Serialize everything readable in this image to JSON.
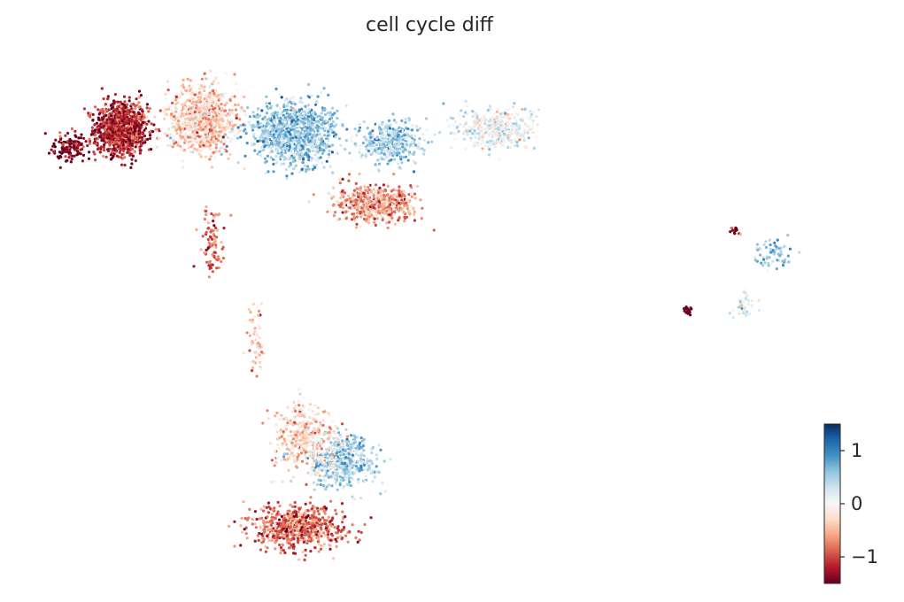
{
  "title": "cell cycle diff",
  "chart_data": {
    "type": "scatter",
    "title": "cell cycle diff",
    "xlabel": "",
    "ylabel": "",
    "grid": false,
    "axes_visible": false,
    "colormap": "RdBu",
    "colormap_stops": [
      "#67001f",
      "#b2182b",
      "#d6604d",
      "#f4a582",
      "#fddbc7",
      "#f7f7f7",
      "#d1e5f0",
      "#92c5de",
      "#4393c3",
      "#2166ac",
      "#053061"
    ],
    "colorbar": {
      "location": "right-bottom",
      "range": [
        -1.5,
        1.5
      ],
      "ticks": [
        {
          "value": 1,
          "label": "1"
        },
        {
          "value": 0,
          "label": "0"
        },
        {
          "value": -1,
          "label": "−1"
        }
      ]
    },
    "clusters": [
      {
        "name": "",
        "center": [
          3.3,
          6.5
        ],
        "spread": [
          0.45,
          0.5
        ],
        "n": 1100,
        "mean": -1.15
      },
      {
        "name": "",
        "center": [
          5.0,
          6.7
        ],
        "spread": [
          0.6,
          0.6
        ],
        "n": 900,
        "mean": -0.35
      },
      {
        "name": "",
        "center": [
          6.9,
          6.4
        ],
        "spread": [
          0.7,
          0.55
        ],
        "n": 1200,
        "mean": 0.55
      },
      {
        "name": "",
        "center": [
          8.9,
          6.2
        ],
        "spread": [
          0.55,
          0.35
        ],
        "n": 450,
        "mean": 0.45
      },
      {
        "name": "",
        "center": [
          11.1,
          6.5
        ],
        "spread": [
          0.7,
          0.4
        ],
        "n": 380,
        "mean": 0.1
      },
      {
        "name": "",
        "center": [
          8.6,
          4.8
        ],
        "spread": [
          0.75,
          0.35
        ],
        "n": 500,
        "mean": -0.65
      },
      {
        "name": "",
        "center": [
          2.2,
          6.1
        ],
        "spread": [
          0.3,
          0.25
        ],
        "n": 120,
        "mean": -1.4
      },
      {
        "name": "",
        "center": [
          5.2,
          3.9
        ],
        "spread": [
          0.2,
          0.55
        ],
        "n": 90,
        "mean": -0.8
      },
      {
        "name": "",
        "center": [
          6.1,
          1.6
        ],
        "spread": [
          0.15,
          0.6
        ],
        "n": 60,
        "mean": -0.3
      },
      {
        "name": "",
        "center": [
          7.9,
          -1.0
        ],
        "spread": [
          0.55,
          0.5
        ],
        "n": 550,
        "mean": 0.45
      },
      {
        "name": "",
        "center": [
          7.1,
          -0.5
        ],
        "spread": [
          0.55,
          0.6
        ],
        "n": 350,
        "mean": -0.35
      },
      {
        "name": "",
        "center": [
          7.0,
          -2.5
        ],
        "spread": [
          0.8,
          0.4
        ],
        "n": 650,
        "mean": -0.85
      },
      {
        "name": "",
        "center": [
          16.9,
          3.7
        ],
        "spread": [
          0.35,
          0.25
        ],
        "n": 70,
        "mean": 0.5
      },
      {
        "name": "",
        "center": [
          16.3,
          2.5
        ],
        "spread": [
          0.25,
          0.2
        ],
        "n": 40,
        "mean": 0.2
      },
      {
        "name": "",
        "center": [
          16.1,
          4.2
        ],
        "spread": [
          0.1,
          0.1
        ],
        "n": 18,
        "mean": -1.4
      },
      {
        "name": "",
        "center": [
          15.1,
          2.4
        ],
        "spread": [
          0.12,
          0.1
        ],
        "n": 18,
        "mean": -1.45
      }
    ],
    "xlim": [
      1.5,
      18.5
    ],
    "ylim": [
      -3.8,
      8.2
    ]
  }
}
